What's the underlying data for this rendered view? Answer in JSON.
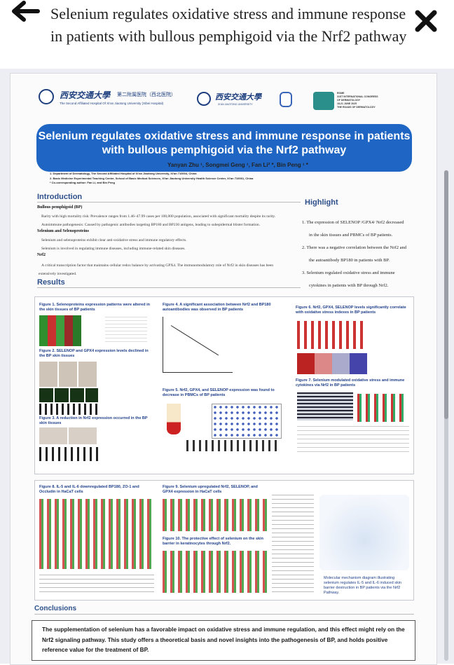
{
  "viewer": {
    "title": "Selenium regulates oxidative stress and immune response in patients with bullous pemphigoid via the Nrf2 pathway",
    "back_icon": "arrow-left-icon",
    "close_icon": "close-x-icon"
  },
  "poster": {
    "logos": {
      "univ_cn": "西安交通大學",
      "hospital_cn": "第二附属医院（西北医院）",
      "hospital_en": "The Second Affiliated Hospital Of Xi'an Jiaotong University (Xibei Hospital)",
      "univ2_cn": "西安交通大學",
      "univ2_en": "XI'AN JIAOTONG UNIVERSITY",
      "conf1": "ROME",
      "conf2": "31ST INTERNATIONAL CONGRESS",
      "conf3": "OF DERMATOLOGY",
      "conf4": "18-21 JUNE 2025",
      "conf5": "THE ROADS OF DERMATOLOGY"
    },
    "title": "Selenium regulates oxidative stress and immune response in patients with bullous pemphigoid via the Nrf2 pathway",
    "authors": "Yanyan Zhu ¹, Songmei Geng ¹, Fan Li² *, Bin Peng ¹ *",
    "affiliations": [
      "1. Department of Dermatology, The Second Affiliated Hospital of Xi'an Jiaotong University, Xi'an 710004, China",
      "2. Basic Medicine Experimental Teaching Center, School of Basic Medical Sciences, Xi'an Jiaotong University Health Science Center, Xi'an 710061, China",
      "* Co-corresponding author: Fan Li, and Bin Peng"
    ],
    "introduction": {
      "heading": "Introduction",
      "bp_head": "Bullous pemphigoid (BP)",
      "bp_lines": [
        "Rarity with high mortality risk: Prevalence ranges from 1.46–47.99 cases per 100,000 population, associated with significant mortality despite its rarity.",
        "Autoimmune pathogenesis: Caused by pathogenic antibodies targeting BP180 and BP230 antigens, leading to subepidermal blister formation."
      ],
      "se_head": "Selenium and Selenoproteins",
      "se_lines": [
        "Selenium and selenoproteins exhibit clear anti-oxidative stress and immune regulatory effects.",
        "Selenium is involved in regulating immune diseases, including immune-related skin diseases."
      ],
      "nrf_head": "Nrf2",
      "nrf_lines": [
        "A critical transcription factor that maintains cellular redox balance by activating GPX4. The immunomodulatory role of Nrf2 in skin diseases has been",
        "extensively investigated."
      ]
    },
    "highlight": {
      "heading": "Highlight",
      "items": [
        "1. The expression of SELENOP /GPX4/ Nrf2 decreased",
        "in the skin tissues and PBMCs of BP patients.",
        "2. There was a negative correlation between the Nrf2 and",
        "the autoantibody BP180 in patients with BP.",
        "3. Selenium regulated oxidative stress and immune",
        "cytokines in patients with BP through Nrf2."
      ]
    },
    "results": {
      "heading": "Results",
      "fig1": "Figure 1. Selenoproteins expression patterns were altered in the skin tissues of BP patients",
      "fig2": "Figure 2. SELENOP and GPX4 expression levels declined in the BP skin tissues",
      "fig3": "Figure 3. A reduction in Nrf2 expression occurred in the BP skin tissues",
      "fig4": "Figure 4. A significant association between Nrf2 and BP180 autoantibodies was observed in BP patients",
      "fig5": "Figure 5. Nrf2, GPX4, and SELENOP expression was found to decrease in PBMCs of BP patients",
      "fig6": "Figure 6. Nrf2, GPX4, SELENOP levels significantly correlate with oxidative stress indexes in BP patients",
      "fig7": "Figure 7. Selenium modulated oxidative stress and immune cytokines via Nrf2 in BP patients",
      "fig8": "Figure 8. IL-5 and IL-6 downregulated BP180, ZO-1 and Occludin in HaCaT cells",
      "fig9": "Figure 9. Selenium upregulated Nrf2, SELENOP, and GPX4 expression in HaCaT cells",
      "fig10": "Figure 10. The protective effect of selenium on the skin barrier in keratinocytes through Nrf2.",
      "mech": "Molecular mechanism diagram illustrating selenium regulates IL-5 and IL-6 induced skin barrier destruction in BP patients via the Nrf2 Pathway."
    },
    "conclusions": {
      "heading": "Conclusions",
      "text": "The supplementation of selenium has a favorable impact on oxidative stress and immune regulation, and this effect might rely on the Nrf2 signaling pathway. This study offers a theoretical basis and novel insights into the pathogenesis of BP, and holds positive reference value for the treatment of BP."
    }
  }
}
